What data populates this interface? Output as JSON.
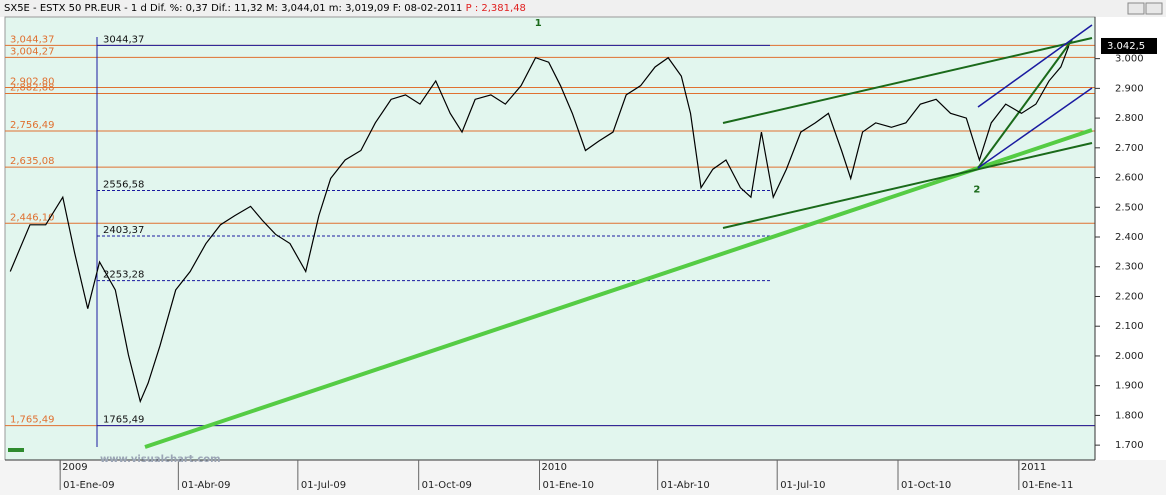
{
  "chart_data": {
    "type": "line",
    "header": "SX5E - ESTX 50 PR.EUR -  1 d Dif. %: 0,37 Dif.: 11,32 M: 3,044,01 m: 3,019,09 F: 08-02-2011",
    "header_price": "P : 2,381,48",
    "watermark": "www.visualchart.com",
    "annotations": [
      {
        "text": "1",
        "x": "2009-12-31",
        "y": 3120
      },
      {
        "text": "2",
        "x": "2010-11-30",
        "y": 2560
      }
    ],
    "color": "#000000",
    "x": [
      "2008-11-24",
      "2008-12-09",
      "2008-12-21",
      "2009-01-03",
      "2009-01-12",
      "2009-01-22",
      "2009-01-31",
      "2009-02-12",
      "2009-02-22",
      "2009-03-03",
      "2009-03-09",
      "2009-03-18",
      "2009-03-30",
      "2009-04-10",
      "2009-04-22",
      "2009-05-03",
      "2009-05-14",
      "2009-05-26",
      "2009-06-04",
      "2009-06-14",
      "2009-06-25",
      "2009-07-07",
      "2009-07-17",
      "2009-07-26",
      "2009-08-06",
      "2009-08-18",
      "2009-08-29",
      "2009-09-10",
      "2009-09-21",
      "2009-10-02",
      "2009-10-14",
      "2009-10-25",
      "2009-11-03",
      "2009-11-13",
      "2009-11-25",
      "2009-12-06",
      "2009-12-18",
      "2009-12-29",
      "2010-01-08",
      "2010-01-17",
      "2010-01-26",
      "2010-02-05",
      "2010-02-15",
      "2010-02-26",
      "2010-03-08",
      "2010-03-19",
      "2010-03-30",
      "2010-04-09",
      "2010-04-19",
      "2010-04-26",
      "2010-05-04",
      "2010-05-13",
      "2010-05-23",
      "2010-06-03",
      "2010-06-11",
      "2010-06-19",
      "2010-06-28",
      "2010-07-08",
      "2010-07-19",
      "2010-07-30",
      "2010-08-09",
      "2010-08-19",
      "2010-08-26",
      "2010-09-04",
      "2010-09-14",
      "2010-09-26",
      "2010-10-07",
      "2010-10-18",
      "2010-10-30",
      "2010-11-10",
      "2010-11-22",
      "2010-12-02",
      "2010-12-11",
      "2010-12-22",
      "2011-01-03",
      "2011-01-14",
      "2011-01-24",
      "2011-02-02",
      "2011-02-08"
    ],
    "values": [
      2284,
      2441,
      2441,
      2534,
      2347,
      2159,
      2316,
      2222,
      2003,
      1847,
      1909,
      2034,
      2222,
      2284,
      2378,
      2441,
      2472,
      2503,
      2456,
      2409,
      2378,
      2284,
      2472,
      2597,
      2659,
      2691,
      2784,
      2863,
      2878,
      2847,
      2925,
      2816,
      2753,
      2863,
      2878,
      2847,
      2909,
      3003,
      2988,
      2909,
      2816,
      2691,
      2722,
      2753,
      2878,
      2909,
      2972,
      3003,
      2941,
      2816,
      2566,
      2628,
      2659,
      2566,
      2534,
      2753,
      2534,
      2628,
      2753,
      2784,
      2816,
      2691,
      2597,
      2753,
      2784,
      2769,
      2784,
      2847,
      2863,
      2816,
      2800,
      2659,
      2784,
      2847,
      2816,
      2847,
      2925,
      2972,
      3042
    ],
    "last_value": {
      "value": 3042.5,
      "label": "3.042,5"
    },
    "ylim": [
      1650,
      3140
    ],
    "yticks": [
      {
        "value": 1700,
        "label": "1.700"
      },
      {
        "value": 1800,
        "label": "1.800"
      },
      {
        "value": 1900,
        "label": "1.900"
      },
      {
        "value": 2000,
        "label": "2.000"
      },
      {
        "value": 2100,
        "label": "2.100"
      },
      {
        "value": 2200,
        "label": "2.200"
      },
      {
        "value": 2300,
        "label": "2.300"
      },
      {
        "value": 2400,
        "label": "2.400"
      },
      {
        "value": 2500,
        "label": "2.500"
      },
      {
        "value": 2600,
        "label": "2.600"
      },
      {
        "value": 2700,
        "label": "2.700"
      },
      {
        "value": 2800,
        "label": "2.800"
      },
      {
        "value": 2900,
        "label": "2.900"
      },
      {
        "value": 3000,
        "label": "3.000"
      }
    ],
    "xlim": [
      "2008-11-20",
      "2011-02-28"
    ],
    "xticks": [
      {
        "value": "2009-01-01",
        "label": "01-Ene-09"
      },
      {
        "value": "2009-04-01",
        "label": "01-Abr-09"
      },
      {
        "value": "2009-07-01",
        "label": "01-Jul-09"
      },
      {
        "value": "2009-10-01",
        "label": "01-Oct-09"
      },
      {
        "value": "2010-01-01",
        "label": "01-Ene-10"
      },
      {
        "value": "2010-04-01",
        "label": "01-Abr-10"
      },
      {
        "value": "2010-07-01",
        "label": "01-Jul-10"
      },
      {
        "value": "2010-10-01",
        "label": "01-Oct-10"
      },
      {
        "value": "2011-01-01",
        "label": "01-Ene-11"
      }
    ],
    "year_labels": [
      {
        "value": "2009-01-01",
        "label": "2009"
      },
      {
        "value": "2010-01-01",
        "label": "2010"
      },
      {
        "value": "2011-01-01",
        "label": "2011"
      }
    ],
    "levels": [
      {
        "value": 3044.37,
        "label": "3,044,37"
      },
      {
        "value": 3004.27,
        "label": "3,004,27"
      },
      {
        "value": 2902.8,
        "label": "2,902,80"
      },
      {
        "value": 2882.88,
        "label": "2,882,88"
      },
      {
        "value": 2756.49,
        "label": "2,756,49"
      },
      {
        "value": 2635.08,
        "label": "2,635,08"
      },
      {
        "value": 2446.1,
        "label": "2,446,10"
      },
      {
        "value": 1765.49,
        "label": "1,765,49"
      }
    ],
    "blue_levels": [
      {
        "value": 3044.37,
        "label": "3044,37"
      },
      {
        "value": 2556.58,
        "label": "2556,58"
      },
      {
        "value": 2403.37,
        "label": "2403,37"
      },
      {
        "value": 2253.28,
        "label": "2253,28"
      },
      {
        "value": 1765.49,
        "label": "1765,49"
      }
    ]
  }
}
